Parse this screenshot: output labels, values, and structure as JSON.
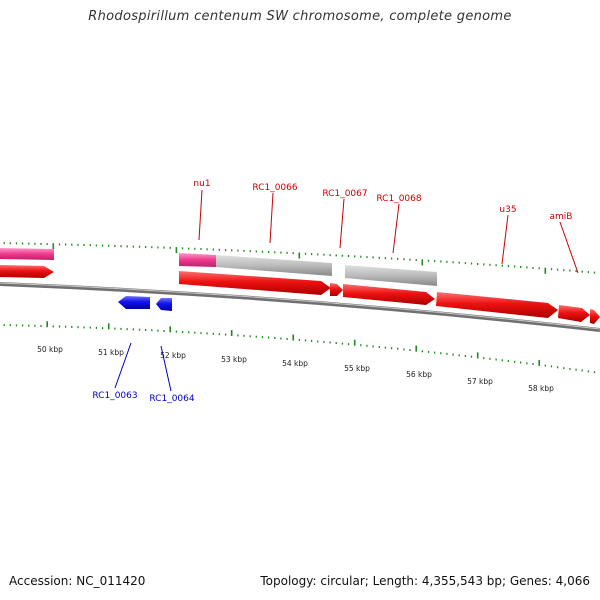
{
  "title": "Rhodospirillum centenum SW chromosome, complete genome",
  "footer": {
    "accession": "Accession: NC_011420",
    "summary": "Topology: circular; Length: 4,355,543 bp; Genes: 4,066"
  },
  "colors": {
    "forward_gene": "#ee1111",
    "reverse_gene": "#1111ee",
    "rna_gene": "#ee3a8c",
    "cds_bar": "#bbbbbb",
    "backbone": "#808080",
    "tick": "#228822",
    "forward_label": "#cc0000",
    "reverse_label": "#0000bb"
  },
  "scale_labels": [
    "50 kbp",
    "51 kbp",
    "52 kbp",
    "53 kbp",
    "54 kbp",
    "55 kbp",
    "56 kbp",
    "57 kbp",
    "58 kbp"
  ],
  "forward_labels": [
    "nu1",
    "RC1_0066",
    "RC1_0067",
    "RC1_0068",
    "u35",
    "amiB"
  ],
  "reverse_labels": [
    "RC1_0063",
    "RC1_0064"
  ]
}
